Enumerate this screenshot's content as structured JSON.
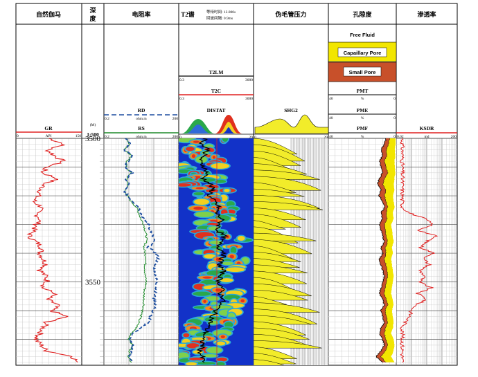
{
  "columns": {
    "gr": "自然伽马",
    "depth_line1": "深",
    "depth_line2": "度",
    "res": "电阻率",
    "t2": "T2谱",
    "t2_note1": "等待时间: 12.000s",
    "t2_note2": "回波间隔: 0.9ms",
    "pc": "伪毛管压力",
    "por": "孔隙度",
    "perm": "渗透率"
  },
  "depth_header": {
    "unit": "(M)",
    "scale": "1:500"
  },
  "curves": {
    "gr": {
      "name": "GR",
      "unit": "API",
      "min": "0",
      "max": "150"
    },
    "rd": {
      "name": "RD",
      "unit": "ohm.m",
      "min": "0.2",
      "max": "200"
    },
    "rs": {
      "name": "RS",
      "unit": "ohm.m",
      "min": "0.2",
      "max": "200"
    },
    "t2lm": {
      "name": "T2LM",
      "min": "0.3",
      "max": "3000"
    },
    "t2c": {
      "name": "T2C",
      "min": "0.3",
      "max": "3000"
    },
    "distat": {
      "name": "DISTAT",
      "min": "0",
      "max": "29"
    },
    "shg2": {
      "name": "SHG2",
      "min": "0",
      "max": "29"
    },
    "pmt": {
      "name": "PMT",
      "unit": "%",
      "min": "40",
      "max": "0"
    },
    "pme": {
      "name": "PME",
      "unit": "%",
      "min": "40",
      "max": "0"
    },
    "pmf": {
      "name": "PMF",
      "unit": "%",
      "min": "40",
      "max": "0"
    },
    "ksdr": {
      "name": "KSDR",
      "unit": "md",
      "min": "0.02",
      "max": "200"
    }
  },
  "legend": {
    "free": "Free Fluid",
    "capillary": "Capaillary Pore",
    "small": "Small Pore"
  },
  "colors": {
    "gr": "#e02020",
    "rd": "#1f4fa0",
    "rs": "#1f8a2a",
    "t2c": "#e02020",
    "capillary": "#f2e600",
    "small": "#c8502a",
    "shg2": "#f2ec2a",
    "ksdr": "#e02020",
    "spectrum_bg": "#1232c8"
  },
  "chart_data": {
    "type": "line",
    "depth_range": [
      3500,
      3579
    ],
    "depth_ticks": [
      "3500",
      "3550"
    ],
    "series": [
      {
        "name": "GR",
        "axis": [
          0,
          150
        ],
        "scale": "linear",
        "depth": [
          3500,
          3502,
          3504,
          3506,
          3508,
          3510,
          3512,
          3514,
          3516,
          3518,
          3520,
          3522,
          3524,
          3526,
          3528,
          3530,
          3532,
          3534,
          3536,
          3538,
          3540,
          3542,
          3544,
          3546,
          3548,
          3550,
          3552,
          3554,
          3556,
          3558,
          3560,
          3562,
          3564,
          3566,
          3568,
          3570,
          3572,
          3574,
          3576,
          3578
        ],
        "value": [
          75,
          110,
          72,
          88,
          108,
          70,
          60,
          95,
          62,
          58,
          50,
          40,
          60,
          45,
          55,
          48,
          40,
          30,
          45,
          60,
          55,
          62,
          70,
          55,
          68,
          72,
          60,
          90,
          70,
          95,
          80,
          115,
          70,
          62,
          55,
          45,
          58,
          70,
          130,
          140
        ]
      },
      {
        "name": "RD",
        "axis": [
          0.2,
          200
        ],
        "scale": "log",
        "depth": [
          3500,
          3502,
          3504,
          3506,
          3508,
          3510,
          3512,
          3514,
          3516,
          3518,
          3520,
          3522,
          3524,
          3526,
          3528,
          3530,
          3532,
          3534,
          3536,
          3538,
          3540,
          3542,
          3544,
          3546,
          3548,
          3550,
          3552,
          3554,
          3556,
          3558,
          3560,
          3562,
          3564,
          3566,
          3568,
          3570,
          3572,
          3574,
          3576,
          3578
        ],
        "value": [
          1.5,
          2.5,
          1.2,
          3,
          1.8,
          1.4,
          2.8,
          1.5,
          2,
          1.3,
          1.8,
          3,
          5,
          6,
          8,
          12,
          15,
          18,
          20,
          12,
          25,
          30,
          22,
          20,
          24,
          26,
          25,
          22,
          20,
          24,
          18,
          15,
          12,
          6,
          3,
          2,
          3,
          2.5,
          2,
          3
        ]
      },
      {
        "name": "RS",
        "axis": [
          0.2,
          200
        ],
        "scale": "log",
        "depth": [
          3500,
          3502,
          3504,
          3506,
          3508,
          3510,
          3512,
          3514,
          3516,
          3518,
          3520,
          3522,
          3524,
          3526,
          3528,
          3530,
          3532,
          3534,
          3536,
          3538,
          3540,
          3542,
          3544,
          3546,
          3548,
          3550,
          3552,
          3554,
          3556,
          3558,
          3560,
          3562,
          3564,
          3566,
          3568,
          3570,
          3572,
          3574,
          3576,
          3578
        ],
        "value": [
          1.6,
          2.2,
          1.3,
          2.5,
          1.7,
          1.5,
          2.4,
          1.6,
          1.9,
          1.4,
          1.7,
          2.5,
          4,
          5,
          6,
          8,
          9,
          10,
          10,
          8,
          9,
          10,
          9,
          9,
          9,
          10,
          9,
          8,
          8,
          8,
          7,
          6,
          5,
          4,
          2.5,
          2,
          2.8,
          2.2,
          2,
          2.6
        ]
      },
      {
        "name": "T2C",
        "axis": [
          0.3,
          3000
        ],
        "scale": "log",
        "depth": [
          3500,
          3502,
          3504,
          3506,
          3508,
          3510,
          3512,
          3514,
          3516,
          3518,
          3520,
          3522,
          3524,
          3526,
          3528,
          3530,
          3532,
          3534,
          3536,
          3538,
          3540,
          3542,
          3544,
          3546,
          3548,
          3550,
          3552,
          3554,
          3556,
          3558,
          3560,
          3562,
          3564,
          3566,
          3568,
          3570,
          3572,
          3574,
          3576,
          3578
        ],
        "value": [
          8,
          5,
          12,
          6,
          4,
          7,
          10,
          6,
          15,
          20,
          12,
          25,
          40,
          30,
          60,
          45,
          35,
          80,
          50,
          40,
          90,
          60,
          45,
          70,
          55,
          40,
          65,
          50,
          80,
          45,
          30,
          20,
          15,
          10,
          8,
          5,
          6,
          4,
          5,
          7
        ]
      },
      {
        "name": "PMT",
        "axis": [
          40,
          0
        ],
        "scale": "linear",
        "depth": [
          3500,
          3502,
          3504,
          3506,
          3508,
          3510,
          3512,
          3514,
          3516,
          3518,
          3520,
          3522,
          3524,
          3526,
          3528,
          3530,
          3532,
          3534,
          3536,
          3538,
          3540,
          3542,
          3544,
          3546,
          3548,
          3550,
          3552,
          3554,
          3556,
          3558,
          3560,
          3562,
          3564,
          3566,
          3568,
          3570,
          3572,
          3574,
          3576,
          3578
        ],
        "value": [
          6,
          7,
          9,
          8,
          10,
          9,
          8,
          10,
          11,
          9,
          10,
          8,
          7,
          9,
          8,
          10,
          9,
          8,
          7,
          9,
          8,
          10,
          9,
          8,
          7,
          8,
          9,
          10,
          8,
          7,
          9,
          8,
          7,
          9,
          10,
          8,
          7,
          9,
          12,
          8
        ]
      },
      {
        "name": "PME",
        "axis": [
          40,
          0
        ],
        "scale": "linear",
        "depth": [
          3500,
          3502,
          3504,
          3506,
          3508,
          3510,
          3512,
          3514,
          3516,
          3518,
          3520,
          3522,
          3524,
          3526,
          3528,
          3530,
          3532,
          3534,
          3536,
          3538,
          3540,
          3542,
          3544,
          3546,
          3548,
          3550,
          3552,
          3554,
          3556,
          3558,
          3560,
          3562,
          3564,
          3566,
          3568,
          3570,
          3572,
          3574,
          3576,
          3578
        ],
        "value": [
          4,
          4.5,
          6,
          5.5,
          7,
          6,
          5,
          7,
          8,
          6,
          7,
          6,
          5,
          6,
          5.5,
          7,
          6.5,
          6,
          5,
          6.5,
          6,
          7,
          6,
          5.5,
          5,
          6,
          6.5,
          7,
          6,
          5,
          6.5,
          6,
          5,
          6.5,
          7,
          6,
          5,
          6.5,
          9,
          6
        ]
      },
      {
        "name": "PMF",
        "axis": [
          40,
          0
        ],
        "scale": "linear",
        "depth": [
          3500,
          3502,
          3504,
          3506,
          3508,
          3510,
          3512,
          3514,
          3516,
          3518,
          3520,
          3522,
          3524,
          3526,
          3528,
          3530,
          3532,
          3534,
          3536,
          3538,
          3540,
          3542,
          3544,
          3546,
          3548,
          3550,
          3552,
          3554,
          3556,
          3558,
          3560,
          3562,
          3564,
          3566,
          3568,
          3570,
          3572,
          3574,
          3576,
          3578
        ],
        "value": [
          0.5,
          0.4,
          0.8,
          0.6,
          1,
          0.8,
          0.5,
          1,
          1.5,
          1,
          2,
          1.5,
          1,
          2,
          1.5,
          3,
          2.5,
          2,
          1.5,
          2.5,
          2,
          3,
          2.5,
          2,
          1.5,
          2,
          2.5,
          3,
          2,
          1.5,
          2.5,
          2,
          1.5,
          2,
          3,
          1.5,
          1,
          1.5,
          3,
          1
        ]
      },
      {
        "name": "KSDR",
        "axis": [
          0.02,
          200
        ],
        "scale": "log",
        "depth": [
          3500,
          3502,
          3504,
          3506,
          3508,
          3510,
          3512,
          3514,
          3516,
          3518,
          3520,
          3522,
          3524,
          3526,
          3528,
          3530,
          3532,
          3534,
          3536,
          3538,
          3540,
          3542,
          3544,
          3546,
          3548,
          3550,
          3552,
          3554,
          3556,
          3558,
          3560,
          3562,
          3564,
          3566,
          3568,
          3570,
          3572,
          3574,
          3576,
          3578
        ],
        "value": [
          0.05,
          0.05,
          0.05,
          0.05,
          0.05,
          0.05,
          0.05,
          0.05,
          0.05,
          0.05,
          0.05,
          0.05,
          0.05,
          0.15,
          1.5,
          5,
          0.6,
          8,
          2,
          0.8,
          6,
          1.2,
          3,
          0.7,
          1.5,
          0.6,
          4,
          0.5,
          2,
          0.4,
          0.2,
          0.15,
          0.08,
          0.05,
          0.05,
          0.05,
          0.05,
          0.05,
          0.05,
          0.05
        ]
      }
    ]
  }
}
